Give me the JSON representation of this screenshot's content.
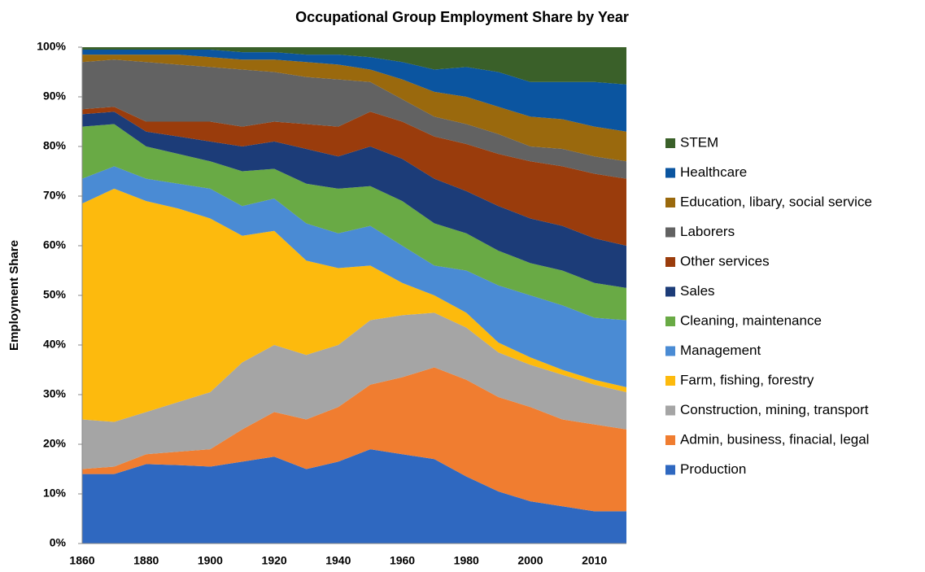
{
  "chart_data": {
    "type": "stacked_area",
    "title": "Occupational Group Employment Share by Year",
    "ylabel": "Employment Share",
    "categories": [
      "1860",
      null,
      "1880",
      null,
      "1900",
      null,
      "1920",
      null,
      "1940",
      null,
      "1960",
      null,
      "1980",
      null,
      "2000",
      null,
      "2010",
      null
    ],
    "ylim": [
      0,
      100
    ],
    "yticks": [
      {
        "value": 0,
        "label": "0%"
      },
      {
        "value": 10,
        "label": "10%"
      },
      {
        "value": 20,
        "label": "20%"
      },
      {
        "value": 30,
        "label": "30%"
      },
      {
        "value": 40,
        "label": "40%"
      },
      {
        "value": 50,
        "label": "50%"
      },
      {
        "value": 60,
        "label": "60%"
      },
      {
        "value": 70,
        "label": "70%"
      },
      {
        "value": 80,
        "label": "80%"
      },
      {
        "value": 90,
        "label": "90%"
      },
      {
        "value": 100,
        "label": "100%"
      }
    ],
    "legend": "right",
    "series": [
      {
        "name": "Production",
        "color": "#2f68c0",
        "values": [
          14,
          14,
          16,
          15.8,
          15.5,
          16.5,
          17.5,
          15,
          16.5,
          19,
          18,
          17,
          13.5,
          10.5,
          8.5,
          7.5,
          6.5,
          6.5
        ]
      },
      {
        "name": "Admin, business, finacial, legal",
        "color": "#f07d30",
        "values": [
          1,
          1.5,
          2,
          2.7,
          3.5,
          6.5,
          9,
          10,
          11,
          13,
          15.5,
          18.5,
          19.5,
          19,
          19,
          17.5,
          17.5,
          16.5
        ]
      },
      {
        "name": "Construction, mining, transport",
        "color": "#a5a5a5",
        "values": [
          10,
          9,
          8.5,
          10,
          11.5,
          13.5,
          13.5,
          13,
          12.5,
          13,
          12.5,
          11,
          10.5,
          9,
          8.5,
          9,
          8,
          7.5
        ]
      },
      {
        "name": "Farm, fishing, forestry",
        "color": "#fdba0d",
        "values": [
          43.5,
          47,
          42.5,
          39,
          35,
          25.5,
          23,
          19,
          15.5,
          11,
          6.5,
          3.5,
          3,
          2,
          1.5,
          1,
          1,
          1
        ]
      },
      {
        "name": "Management",
        "color": "#4a8bd4",
        "values": [
          5,
          4.5,
          4.5,
          5,
          6,
          6,
          6.5,
          7.5,
          7,
          8,
          7.5,
          6,
          8.5,
          11.5,
          12.5,
          13,
          12.5,
          13.5
        ]
      },
      {
        "name": "Cleaning, maintenance",
        "color": "#69aa45",
        "values": [
          10.5,
          8.5,
          6.5,
          6,
          5.5,
          7,
          6,
          8,
          9,
          8,
          9,
          8.5,
          7.5,
          7,
          6.5,
          7,
          7,
          6.5
        ]
      },
      {
        "name": "Sales",
        "color": "#1c3c78",
        "values": [
          2.5,
          2.5,
          3,
          3.5,
          4,
          5,
          5.5,
          7,
          6.5,
          8,
          8.5,
          9,
          8.5,
          9,
          9,
          9,
          9,
          8.5
        ]
      },
      {
        "name": "Other services",
        "color": "#9a3c0c",
        "values": [
          1,
          1,
          2,
          3,
          4,
          4,
          4,
          5,
          6,
          7,
          7.5,
          8.5,
          9.5,
          10.5,
          11.5,
          12,
          13,
          13.5
        ]
      },
      {
        "name": "Laborers",
        "color": "#626262",
        "values": [
          9.5,
          9.5,
          12,
          11.5,
          11,
          11.5,
          10,
          9.5,
          9.5,
          6,
          4.5,
          4,
          4,
          4,
          3,
          3.5,
          3.5,
          3.5
        ]
      },
      {
        "name": "Education, libary, social service",
        "color": "#9a690d",
        "values": [
          1.5,
          1,
          1.5,
          2,
          2,
          2,
          2.5,
          3,
          3,
          2.5,
          4,
          5,
          5.5,
          5.5,
          6,
          6,
          6,
          6
        ]
      },
      {
        "name": "Healthcare",
        "color": "#0b55a0",
        "values": [
          1,
          1,
          1,
          1,
          1.5,
          1.5,
          1.5,
          1.5,
          2,
          2.5,
          3.5,
          4.5,
          6,
          7,
          7,
          7.5,
          9,
          9.5
        ]
      },
      {
        "name": "STEM",
        "color": "#3a6029",
        "values": [
          0.5,
          0.5,
          0.5,
          0.5,
          0.5,
          1,
          1,
          1.5,
          1.5,
          2,
          3,
          4.5,
          4,
          5,
          7,
          7,
          7,
          7.5
        ]
      }
    ]
  }
}
